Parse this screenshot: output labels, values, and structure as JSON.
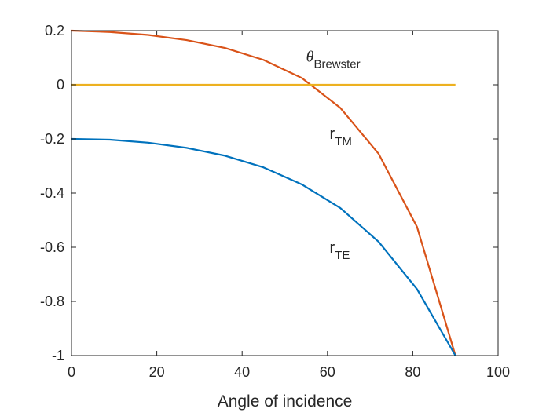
{
  "chart_data": {
    "type": "line",
    "xlabel": "Angle of incidence",
    "ylabel": "",
    "title": "",
    "xlim": [
      0,
      100
    ],
    "ylim": [
      -1,
      0.2
    ],
    "xticks": [
      0,
      20,
      40,
      60,
      80,
      100
    ],
    "yticks": [
      -1,
      -0.8,
      -0.6,
      -0.4,
      -0.2,
      0,
      0.2
    ],
    "xtick_labels": [
      "0",
      "20",
      "40",
      "60",
      "80",
      "100"
    ],
    "ytick_labels": [
      "-1",
      "-0.8",
      "-0.6",
      "-0.4",
      "-0.2",
      "0",
      "0.2"
    ],
    "grid": false,
    "box": true,
    "series": [
      {
        "key": "r_tm",
        "color": "#D95319",
        "x": [
          0,
          9,
          18,
          27,
          36,
          45,
          54,
          63,
          72,
          81,
          90
        ],
        "y": [
          0.2,
          0.195,
          0.184,
          0.165,
          0.136,
          0.092,
          0.025,
          -0.085,
          -0.255,
          -0.525,
          -1.0
        ]
      },
      {
        "key": "zero_line",
        "color": "#EDB120",
        "x": [
          0,
          90
        ],
        "y": [
          0,
          0
        ]
      },
      {
        "key": "r_te",
        "color": "#0072BD",
        "x": [
          0,
          9,
          18,
          27,
          36,
          45,
          54,
          63,
          72,
          81,
          90
        ],
        "y": [
          -0.2,
          -0.203,
          -0.214,
          -0.233,
          -0.262,
          -0.305,
          -0.368,
          -0.455,
          -0.58,
          -0.755,
          -1.0
        ]
      }
    ],
    "annotations": [
      {
        "key": "theta_brewster",
        "base": "θ",
        "sub": "Brewster",
        "x": 55,
        "y": 0.085
      },
      {
        "key": "r_tm_label",
        "base": "r",
        "sub": "TM",
        "x": 60.5,
        "y": -0.2
      },
      {
        "key": "r_te_label",
        "base": "r",
        "sub": "TE",
        "x": 60.5,
        "y": -0.62
      }
    ]
  }
}
